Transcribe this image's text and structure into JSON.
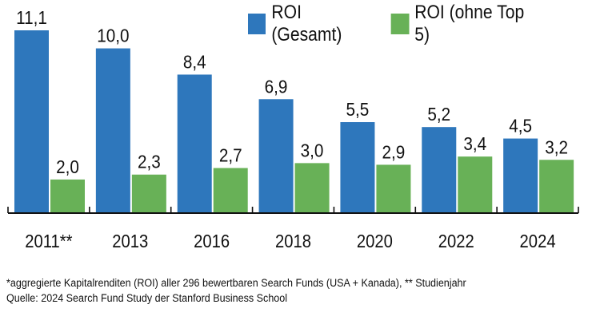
{
  "chart_data": {
    "type": "bar",
    "title": "",
    "xlabel": "",
    "ylabel": "",
    "ylim": [
      0,
      11.1
    ],
    "grid": false,
    "legend_position": "top-right",
    "categories": [
      "2011**",
      "2013",
      "2016",
      "2018",
      "2020",
      "2022",
      "2024"
    ],
    "series": [
      {
        "name": "ROI (Gesamt)",
        "color": "#2e77bc",
        "values": [
          11.1,
          10.0,
          8.4,
          6.9,
          5.5,
          5.2,
          4.5
        ],
        "labels": [
          "11,1",
          "10,0",
          "8,4",
          "6,9",
          "5,5",
          "5,2",
          "4,5"
        ]
      },
      {
        "name": "ROI (ohne Top 5)",
        "color": "#68b157",
        "values": [
          2.0,
          2.3,
          2.7,
          3.0,
          2.9,
          3.4,
          3.2
        ],
        "labels": [
          "2,0",
          "2,3",
          "2,7",
          "3,0",
          "2,9",
          "3,4",
          "3,2"
        ]
      }
    ]
  },
  "footnote": {
    "line1": "*aggregierte Kapitalrenditen (ROI) aller 296 bewertbaren Search Funds (USA + Kanada), ** Studienjahr",
    "line2": "Quelle: 2024 Search Fund Study der Stanford Business School"
  }
}
